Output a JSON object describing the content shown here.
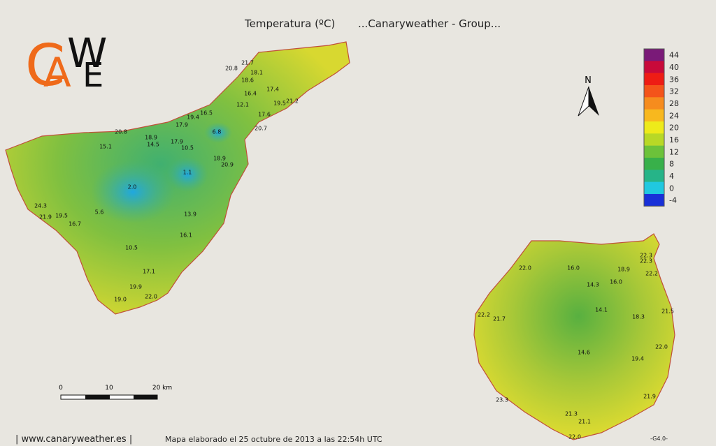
{
  "header": {
    "title": "Temperatura (ºC)",
    "group": "...Canaryweather - Group..."
  },
  "logo": {
    "letters": [
      "C",
      "A",
      "W",
      "E"
    ]
  },
  "north": "N",
  "legend": {
    "ticks": [
      44,
      40,
      36,
      32,
      28,
      24,
      20,
      16,
      12,
      8,
      4,
      0,
      -4
    ],
    "colors": [
      "#7a1a78",
      "#c80a3a",
      "#ee1c14",
      "#f4541a",
      "#f68c1e",
      "#f8b81e",
      "#eeea1a",
      "#b8d826",
      "#6cc23a",
      "#38b04a",
      "#26b488",
      "#20c8e0",
      "#1830d8"
    ]
  },
  "scale": {
    "labels": [
      "0",
      "10",
      "20 km"
    ]
  },
  "stations": {
    "tenerife": [
      "21.7",
      "20.8",
      "18.1",
      "18.6",
      "17.4",
      "16.4",
      "21.2",
      "19.5",
      "12.1",
      "16.5",
      "17.6",
      "19.4",
      "17.9",
      "20.7",
      "6.8",
      "20.8",
      "18.9",
      "14.5",
      "17.9",
      "15.1",
      "10.5",
      "18.9",
      "20.9",
      "1.1",
      "2.0",
      "24.3",
      "19.5",
      "5.6",
      "13.9",
      "21.9",
      "16.7",
      "16.1",
      "10.5",
      "17.1",
      "19.9",
      "22.0",
      "19.0"
    ],
    "gran_canaria": [
      "22.3",
      "22.3",
      "22.0",
      "16.0",
      "18.9",
      "22.2",
      "16.0",
      "14.3",
      "14.1",
      "21.5",
      "22.2",
      "21.7",
      "18.3",
      "22.0",
      "14.6",
      "19.4",
      "23.3",
      "21.9",
      "21.3",
      "21.1",
      "22.0"
    ]
  },
  "footer": {
    "site": "| www.canaryweather.es |",
    "made": "Mapa elaborado el 25 octubre de 2013 a las 22:54h UTC",
    "version": "-G4.0-"
  }
}
